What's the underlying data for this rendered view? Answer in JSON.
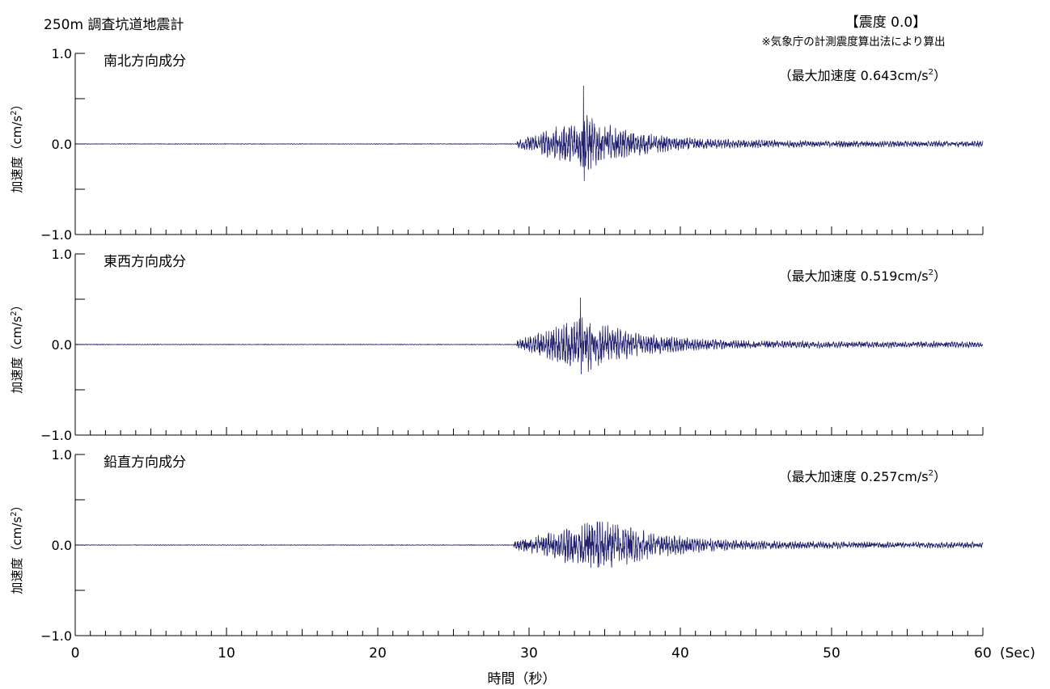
{
  "header": {
    "station": "250m 調査坑道地震計",
    "intensity": "【震度 0.0】",
    "note": "※気象庁の計測震度算出法により算出"
  },
  "colors": {
    "trace": "#1f1f6e",
    "axis": "#000000"
  },
  "chart_data": {
    "type": "line",
    "x_unit": "(Sec)",
    "xlabel": "時間（秒）",
    "xlim": [
      0,
      60
    ],
    "x_ticks": [
      "0",
      "10",
      "20",
      "30",
      "40",
      "50",
      "60"
    ],
    "panels": [
      {
        "name": "南北方向成分",
        "ylabel": "加速度（cm/s",
        "ylabel_sup": "2",
        "ylabel_close": "）",
        "ylim": [
          -1.0,
          1.0
        ],
        "y_ticks": [
          "1.0",
          "0.0",
          "−1.0"
        ],
        "max_label": "（最大加速度 0.643cm/s",
        "max_sup": "2",
        "max_close": "）",
        "peak_max": 0.643,
        "peak_min": -0.41,
        "onset": 29.2,
        "peak_time": 33.6,
        "decay": 3.0
      },
      {
        "name": "東西方向成分",
        "ylabel": "加速度（cm/s",
        "ylabel_sup": "2",
        "ylabel_close": "）",
        "ylim": [
          -1.0,
          1.0
        ],
        "y_ticks": [
          "1.0",
          "0.0",
          "−1.0"
        ],
        "max_label": "（最大加速度 0.519cm/s",
        "max_sup": "2",
        "max_close": "）",
        "peak_max": 0.519,
        "peak_min": -0.33,
        "onset": 29.2,
        "peak_time": 33.4,
        "decay": 3.2
      },
      {
        "name": "鉛直方向成分",
        "ylabel": "加速度（cm/s",
        "ylabel_sup": "2",
        "ylabel_close": "）",
        "ylim": [
          -1.0,
          1.0
        ],
        "y_ticks": [
          "1.0",
          "0.0",
          "−1.0"
        ],
        "max_label": "（最大加速度 0.257cm/s",
        "max_sup": "2",
        "max_close": "）",
        "peak_max": 0.257,
        "peak_min": -0.25,
        "onset": 29.0,
        "peak_time": 34.5,
        "decay": 3.5
      }
    ]
  }
}
